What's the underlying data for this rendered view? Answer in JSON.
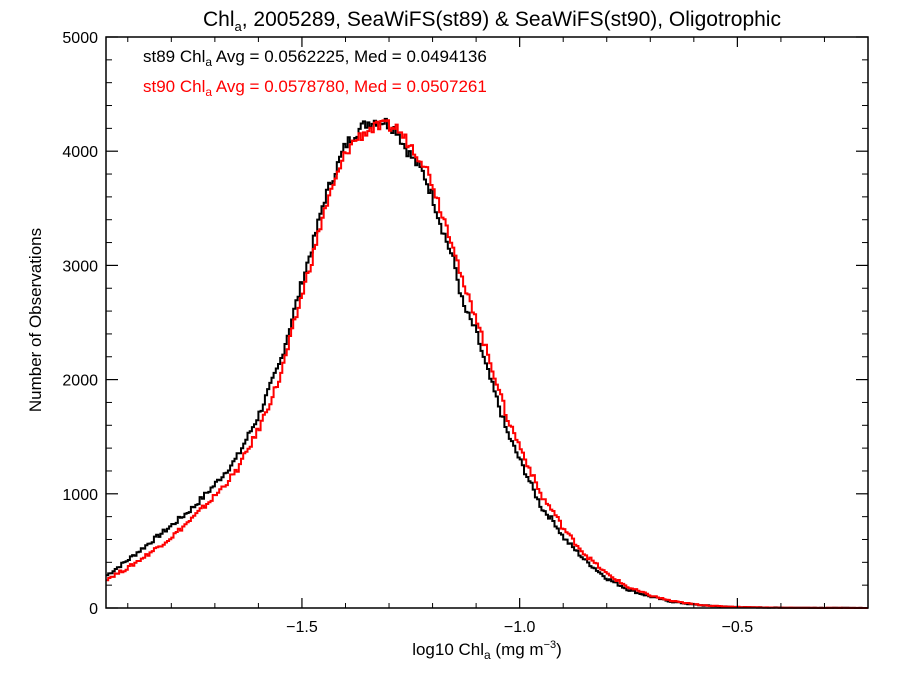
{
  "chart_data": {
    "type": "line",
    "step": true,
    "title": {
      "main": "Chl",
      "sub": "a",
      "rest": ", 2005289, SeaWiFS(st89) & SeaWiFS(st90), Oligotrophic"
    },
    "xlabel": {
      "pre": "log10 Chl",
      "sub": "a",
      "post": " (mg m",
      "sup": "−3",
      "end": ")"
    },
    "ylabel": "Number of Observations",
    "xlim": [
      -1.95,
      -0.2
    ],
    "ylim": [
      0,
      5000
    ],
    "x_ticks": [
      -1.5,
      -1.0,
      -0.5
    ],
    "x_tick_labels": [
      "−1.5",
      "−1.0",
      "−0.5"
    ],
    "y_ticks": [
      0,
      1000,
      2000,
      3000,
      4000,
      5000
    ],
    "y_tick_labels": [
      "0",
      "1000",
      "2000",
      "3000",
      "4000",
      "5000"
    ],
    "annotations": [
      {
        "pre": "st89 Chl",
        "sub": "a",
        "post": " Avg = 0.0562225, Med = 0.0494136",
        "color": "#000000"
      },
      {
        "pre": "st90 Chl",
        "sub": "a",
        "post": " Avg = 0.0578780, Med = 0.0507261",
        "color": "#ff0000"
      }
    ],
    "series": [
      {
        "color": "#000000",
        "x": [
          -1.95,
          -1.9,
          -1.85,
          -1.8,
          -1.75,
          -1.7,
          -1.65,
          -1.6,
          -1.55,
          -1.5,
          -1.47,
          -1.45,
          -1.42,
          -1.4,
          -1.38,
          -1.35,
          -1.33,
          -1.31,
          -1.3,
          -1.28,
          -1.27,
          -1.25,
          -1.22,
          -1.2,
          -1.18,
          -1.15,
          -1.13,
          -1.1,
          -1.08,
          -1.05,
          -1.03,
          -1.0,
          -0.97,
          -0.95,
          -0.92,
          -0.9,
          -0.85,
          -0.8,
          -0.75,
          -0.7,
          -0.65,
          -0.6,
          -0.55,
          -0.5,
          -0.45,
          -0.4,
          -0.35,
          -0.3,
          -0.25,
          -0.2
        ],
        "y": [
          280,
          420,
          570,
          720,
          880,
          1080,
          1310,
          1680,
          2150,
          2850,
          3250,
          3560,
          3860,
          4050,
          4150,
          4250,
          4270,
          4260,
          4230,
          4180,
          4080,
          3960,
          3800,
          3600,
          3350,
          3020,
          2650,
          2420,
          2150,
          1800,
          1550,
          1300,
          1050,
          880,
          750,
          620,
          420,
          260,
          160,
          100,
          55,
          30,
          15,
          8,
          5,
          3,
          2,
          1,
          1,
          0
        ]
      },
      {
        "color": "#ff0000",
        "x": [
          -1.95,
          -1.9,
          -1.85,
          -1.8,
          -1.75,
          -1.7,
          -1.65,
          -1.6,
          -1.55,
          -1.5,
          -1.47,
          -1.45,
          -1.42,
          -1.4,
          -1.38,
          -1.35,
          -1.33,
          -1.31,
          -1.3,
          -1.28,
          -1.27,
          -1.25,
          -1.22,
          -1.2,
          -1.18,
          -1.15,
          -1.13,
          -1.1,
          -1.08,
          -1.05,
          -1.03,
          -1.0,
          -0.97,
          -0.95,
          -0.92,
          -0.9,
          -0.85,
          -0.8,
          -0.75,
          -0.7,
          -0.65,
          -0.6,
          -0.55,
          -0.5,
          -0.45,
          -0.4,
          -0.35,
          -0.3,
          -0.25,
          -0.2
        ],
        "y": [
          250,
          350,
          480,
          620,
          790,
          980,
          1200,
          1560,
          2020,
          2740,
          3150,
          3460,
          3770,
          3980,
          4090,
          4180,
          4210,
          4220,
          4220,
          4200,
          4140,
          4050,
          3900,
          3720,
          3480,
          3160,
          2820,
          2560,
          2300,
          1950,
          1680,
          1420,
          1160,
          980,
          830,
          700,
          470,
          300,
          180,
          110,
          60,
          33,
          17,
          9,
          5,
          3,
          2,
          1,
          1,
          0
        ]
      }
    ]
  }
}
